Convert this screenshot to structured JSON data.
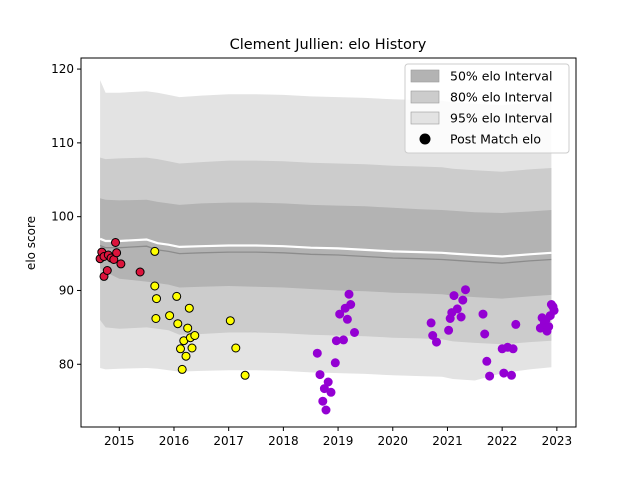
{
  "chart_data": {
    "type": "scatter",
    "title": "Clement Jullien: elo History",
    "xlabel": "",
    "ylabel": "elo score",
    "xlim": [
      2014.3,
      2023.35
    ],
    "ylim": [
      71.5,
      121.5
    ],
    "x_ticks": [
      2015,
      2016,
      2017,
      2018,
      2019,
      2020,
      2021,
      2022,
      2023
    ],
    "x_tick_labels": [
      "2015",
      "2016",
      "2017",
      "2018",
      "2019",
      "2020",
      "2021",
      "2022",
      "2023"
    ],
    "y_ticks": [
      80,
      90,
      100,
      110,
      120
    ],
    "y_tick_labels": [
      "80",
      "90",
      "100",
      "110",
      "120"
    ],
    "grid": false,
    "legend_position": "top-right",
    "legend": [
      {
        "label": "50% elo Interval",
        "kind": "band",
        "color": "#b3b3b3"
      },
      {
        "label": "80% elo Interval",
        "kind": "band",
        "color": "#cccccc"
      },
      {
        "label": "95% elo Interval",
        "kind": "band",
        "color": "#e3e3e3"
      },
      {
        "label": "Post Match elo",
        "kind": "marker",
        "color": "#000000"
      }
    ],
    "bands": {
      "x": [
        2014.65,
        2014.75,
        2015.0,
        2015.5,
        2015.7,
        2015.9,
        2016.1,
        2016.5,
        2017.0,
        2017.5,
        2018.0,
        2018.5,
        2019.0,
        2019.5,
        2020.0,
        2020.5,
        2020.9,
        2021.1,
        2021.5,
        2022.0,
        2022.5,
        2022.9
      ],
      "mean": [
        97.0,
        96.7,
        96.7,
        96.9,
        96.4,
        96.2,
        95.9,
        96.0,
        96.1,
        96.1,
        96.0,
        95.8,
        95.7,
        95.5,
        95.3,
        95.2,
        95.1,
        95.0,
        94.8,
        94.6,
        94.9,
        95.1
      ],
      "p50_lo": [
        93.0,
        92.5,
        91.6,
        91.2,
        91.0,
        90.8,
        90.4,
        90.5,
        90.6,
        90.5,
        90.4,
        90.2,
        90.0,
        89.9,
        89.7,
        89.6,
        89.5,
        89.3,
        89.1,
        88.9,
        89.2,
        89.4
      ],
      "p50_hi": [
        102.5,
        102.3,
        102.2,
        102.3,
        102.0,
        101.8,
        101.6,
        101.8,
        101.9,
        101.9,
        101.8,
        101.6,
        101.5,
        101.4,
        101.2,
        101.0,
        100.9,
        100.8,
        100.6,
        100.5,
        100.7,
        100.9
      ],
      "p80_lo": [
        86.0,
        85.0,
        84.8,
        85.0,
        84.8,
        84.6,
        84.0,
        84.1,
        84.3,
        84.3,
        84.2,
        84.0,
        83.9,
        83.8,
        83.6,
        83.5,
        83.4,
        83.1,
        82.9,
        82.7,
        83.0,
        83.2
      ],
      "p80_hi": [
        108.0,
        107.8,
        107.9,
        108.0,
        107.8,
        107.5,
        107.2,
        107.4,
        107.6,
        107.6,
        107.5,
        107.3,
        107.2,
        107.1,
        106.9,
        106.8,
        106.7,
        106.5,
        106.3,
        106.1,
        106.4,
        106.6
      ],
      "p95_lo": [
        79.5,
        79.3,
        79.4,
        79.5,
        79.4,
        79.2,
        79.0,
        79.1,
        79.2,
        79.2,
        79.1,
        78.9,
        78.8,
        78.7,
        78.5,
        78.4,
        78.3,
        78.0,
        77.8,
        78.8,
        79.3,
        79.6
      ],
      "p95_hi": [
        118.5,
        116.8,
        116.8,
        117.0,
        116.8,
        116.5,
        116.2,
        116.4,
        116.6,
        116.6,
        116.5,
        116.3,
        116.2,
        116.1,
        115.9,
        115.8,
        115.7,
        115.5,
        115.3,
        115.1,
        115.4,
        115.6
      ],
      "band_colors": {
        "p95": "#e3e3e3",
        "p80": "#cccccc",
        "p50": "#b3b3b3",
        "mean_line": "#ffffff",
        "mean_line_inner": "#8c8c8c"
      }
    },
    "series": [
      {
        "color": "#dc143c",
        "points": [
          [
            2014.65,
            94.3
          ],
          [
            2014.68,
            95.2
          ],
          [
            2014.72,
            94.6
          ],
          [
            2014.72,
            91.9
          ],
          [
            2014.78,
            92.7
          ],
          [
            2014.8,
            94.8
          ],
          [
            2014.85,
            94.4
          ],
          [
            2014.9,
            94.2
          ],
          [
            2014.93,
            96.5
          ],
          [
            2014.95,
            95.1
          ],
          [
            2015.03,
            93.6
          ],
          [
            2015.38,
            92.5
          ]
        ]
      },
      {
        "color": "#ffff00",
        "points": [
          [
            2015.65,
            95.3
          ],
          [
            2015.65,
            90.6
          ],
          [
            2015.68,
            88.9
          ],
          [
            2015.67,
            86.2
          ],
          [
            2015.92,
            86.6
          ],
          [
            2016.05,
            89.2
          ],
          [
            2016.07,
            85.5
          ],
          [
            2016.12,
            82.1
          ],
          [
            2016.15,
            79.3
          ],
          [
            2016.18,
            83.2
          ],
          [
            2016.22,
            81.1
          ],
          [
            2016.25,
            84.9
          ],
          [
            2016.28,
            87.6
          ],
          [
            2016.3,
            83.6
          ],
          [
            2016.33,
            82.2
          ],
          [
            2016.38,
            83.9
          ],
          [
            2017.03,
            85.9
          ],
          [
            2017.13,
            82.2
          ],
          [
            2017.3,
            78.5
          ]
        ]
      },
      {
        "color": "#9400d3",
        "points": [
          [
            2018.62,
            81.5
          ],
          [
            2018.67,
            78.6
          ],
          [
            2018.72,
            75.0
          ],
          [
            2018.75,
            76.7
          ],
          [
            2018.78,
            73.8
          ],
          [
            2018.82,
            77.6
          ],
          [
            2018.87,
            76.2
          ],
          [
            2018.95,
            80.2
          ],
          [
            2018.97,
            83.2
          ],
          [
            2019.03,
            86.8
          ],
          [
            2019.1,
            83.3
          ],
          [
            2019.13,
            87.6
          ],
          [
            2019.17,
            86.1
          ],
          [
            2019.2,
            89.5
          ],
          [
            2019.23,
            88.1
          ],
          [
            2019.3,
            84.3
          ],
          [
            2020.7,
            85.6
          ],
          [
            2020.73,
            83.9
          ],
          [
            2020.8,
            83.0
          ],
          [
            2021.02,
            84.6
          ],
          [
            2021.05,
            86.2
          ],
          [
            2021.08,
            87.0
          ],
          [
            2021.12,
            89.3
          ],
          [
            2021.18,
            87.5
          ],
          [
            2021.25,
            86.4
          ],
          [
            2021.28,
            88.7
          ],
          [
            2021.33,
            90.1
          ],
          [
            2021.65,
            86.8
          ],
          [
            2021.68,
            84.1
          ],
          [
            2021.72,
            80.4
          ],
          [
            2021.77,
            78.4
          ],
          [
            2022.0,
            82.1
          ],
          [
            2022.03,
            78.8
          ],
          [
            2022.1,
            82.3
          ],
          [
            2022.17,
            78.5
          ],
          [
            2022.2,
            82.1
          ],
          [
            2022.25,
            85.4
          ],
          [
            2022.7,
            84.9
          ],
          [
            2022.73,
            86.3
          ],
          [
            2022.77,
            85.5
          ],
          [
            2022.8,
            86.0
          ],
          [
            2022.82,
            84.5
          ],
          [
            2022.85,
            85.1
          ],
          [
            2022.88,
            86.6
          ],
          [
            2022.9,
            88.1
          ],
          [
            2022.93,
            87.8
          ],
          [
            2022.95,
            87.3
          ]
        ]
      }
    ]
  }
}
